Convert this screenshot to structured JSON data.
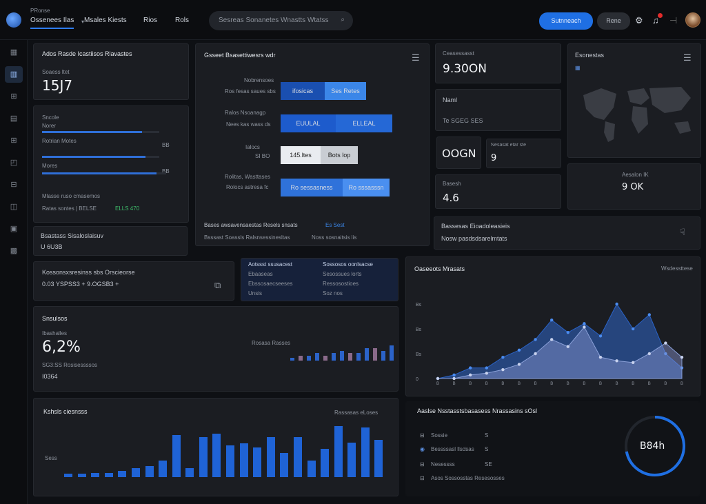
{
  "header": {
    "brand": "PRonse",
    "nav": [
      {
        "label": "Ossenees Ilas"
      },
      {
        "label": "Msales Kiests"
      },
      {
        "label": "Rios"
      },
      {
        "label": "Rols"
      }
    ],
    "search_placeholder": "Sesreas Sonanetes Wnastts Wtatss",
    "primary_button": "Sutnneach",
    "ghost_button": "Rene"
  },
  "sidebar": {
    "items": [
      {
        "icon": "grid-icon"
      },
      {
        "icon": "layout-icon"
      },
      {
        "icon": "users-icon"
      },
      {
        "icon": "calendar-icon"
      },
      {
        "icon": "table-icon"
      },
      {
        "icon": "chart-icon"
      },
      {
        "icon": "settings-icon"
      },
      {
        "icon": "folder-icon"
      },
      {
        "icon": "archive-icon"
      }
    ]
  },
  "kpi1": {
    "title": "Ados Rasde Icastiisos Rlavastes",
    "label": "Soaess ltet",
    "value": "15J7"
  },
  "progress_card": {
    "l1": "Sncole",
    "l2": "Norer",
    "p1": 0.85,
    "l3": "Rotrian Motes",
    "r3": "BB",
    "p2": 0.88,
    "l4": "Mores",
    "r4": "BB",
    "p3": 0.92,
    "foot_l": "Mlasse ruso cmasemos",
    "foot_r": "Ratas sontes | BELSE",
    "foot_v": "ELLS 470"
  },
  "kpi2": {
    "title": "Bsastass Sisaloslaisuv",
    "value": "U 6U3B"
  },
  "funnel": {
    "title": "Gsseet Bsasettiwesrs wdr",
    "rows": [
      {
        "l1": "Nobrensoes",
        "l2": "Ros fesas saues sbs",
        "a": "ifosicas",
        "b": "Ses Retes"
      },
      {
        "l1": "Ralos Nsoanagp",
        "l2": "Nees kas wass ds",
        "a": "EUULAL",
        "b": "ELLEAL"
      },
      {
        "l1": "Ialocs",
        "l2": "SI BO",
        "a": "145.ltes",
        "b": "Bots lop"
      },
      {
        "l1": "Rolitas, Wasttases",
        "l2": "Rolocs astresa fc",
        "a": "Ro sessasness",
        "b": "Ro sssasssn"
      }
    ],
    "foot1": "Bases awsavensaestas Resels snsats",
    "foot1b": "Es Sest",
    "foot2": "Bsssast Soassls Ralsnsessinesltas",
    "foot2b": "Noss sosnaitsis lis"
  },
  "stat_a": {
    "label": "Ceasessasst",
    "value": "9.30ON"
  },
  "stat_b": {
    "label": "Naml",
    "value": "Te SGEG SES"
  },
  "stat_c": {
    "value": "OOGN"
  },
  "stat_d": {
    "label": "Nesasat etar ste",
    "value": "9"
  },
  "stat_e": {
    "label": "Basesh",
    "value": "4.6"
  },
  "map_card": {
    "title": "Esonestas"
  },
  "stat_f": {
    "label": "Aesalon IK",
    "value": "9 OK"
  },
  "message": {
    "title": "Bassesas Eioadoleasieis",
    "sub": "Nosw pasdsdsarelmtats"
  },
  "table_a": {
    "title": "Kossonsxsresinss sbs Orscieorse",
    "value": "0.03 YSPSS3 + 9.OGSB3 +"
  },
  "table_b": {
    "rows": [
      [
        "Aotssst ssusacest",
        "Sossosos oonlsacse"
      ],
      [
        "Ebaaseas",
        "Sesossues lorts"
      ],
      [
        "Ebssosaecseeses",
        "Ressosostioes"
      ],
      [
        "Unsis",
        "Soz nos"
      ]
    ]
  },
  "revenue": {
    "title": "Snsulsos",
    "label": "Ibashalles",
    "value": "6,2%",
    "sub": "SG3:SS Rosisessssos",
    "foot": "I0364",
    "chart_label": "Rosasa Rasses"
  },
  "area_chart_card": {
    "title": "Oaseeots Mrasats",
    "right_label": "Wsdessttese"
  },
  "bottom_bar": {
    "title": "Kshsls ciesnsss",
    "right": "Rassasas eLoses",
    "ylabel": "Sess"
  },
  "activity": {
    "title": "Aaslse Nsstasstsbasasess Nrassasins sOsl",
    "items": [
      {
        "label": "Sossie",
        "val": "S"
      },
      {
        "label": "Bessssasl llsdsas",
        "val": "S"
      },
      {
        "label": "Nesessss",
        "val": "SE"
      },
      {
        "label": "Asos Sossosstas Resesosses",
        "val": ""
      }
    ],
    "gauge": "B84h",
    "gauge_pct": 0.72
  },
  "colors": {
    "accent": "#1f6fe3",
    "card": "#1b1d22",
    "bg": "#0e1014"
  },
  "chart_data": [
    {
      "type": "bar",
      "title": "",
      "values": [
        1,
        2,
        2,
        3,
        2,
        3,
        4,
        3,
        3,
        5,
        5,
        4,
        6,
        8,
        6,
        10
      ],
      "xlabel": "",
      "ylabel": ""
    },
    {
      "type": "area",
      "title": "Oaseeots Mrasats",
      "x": [
        "B",
        "B",
        "B",
        "B",
        "B",
        "B",
        "B",
        "B",
        "B",
        "B",
        "B",
        "B",
        "B",
        "B",
        "B",
        "B"
      ],
      "y_ticks": [
        "0",
        "Bs",
        "Bs",
        "Bs"
      ],
      "series": [
        {
          "values": [
            0,
            0.2,
            0.6,
            0.6,
            1.2,
            1.6,
            2.2,
            3.3,
            2.6,
            3.1,
            2.4,
            4.2,
            2.8,
            3.6,
            1.4,
            0.6
          ]
        },
        {
          "values": [
            0,
            0,
            0.2,
            0.3,
            0.5,
            0.8,
            1.4,
            2.2,
            1.8,
            2.9,
            1.2,
            1.0,
            0.9,
            1.4,
            2.0,
            1.2
          ]
        }
      ]
    },
    {
      "type": "bar",
      "title": "Kshsls ciesnsss",
      "values": [
        0.3,
        0.3,
        0.4,
        0.4,
        0.6,
        0.8,
        1.0,
        1.5,
        3.9,
        0.8,
        3.7,
        4.0,
        2.9,
        3.1,
        2.7,
        3.7,
        2.2,
        3.7,
        1.5,
        2.6,
        4.7,
        3.2,
        4.6,
        3.4
      ],
      "ylabel": "Sess"
    }
  ]
}
